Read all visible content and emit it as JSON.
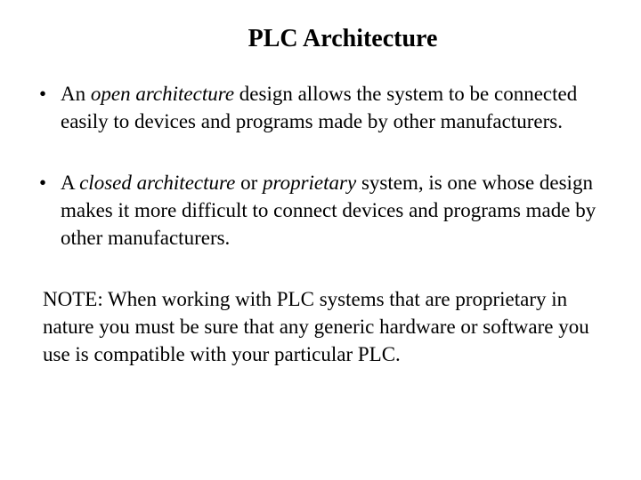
{
  "title": "PLC Architecture",
  "bullets": [
    {
      "pre": "An ",
      "italic": "open architecture",
      "post": " design allows the system to be connected easily to devices and programs made by other manufacturers."
    },
    {
      "pre": "A ",
      "italic": "closed architecture",
      "mid": " or ",
      "italic2": "proprietary",
      "post": " system, is one whose design makes it more difficult to connect devices and programs made by other manufacturers."
    }
  ],
  "note": "NOTE: When working with PLC systems that are proprietary in nature you must be sure that any generic hardware or software you use is compatible with your particular PLC.",
  "style": {
    "background_color": "#ffffff",
    "text_color": "#000000",
    "font_family": "Times New Roman",
    "title_fontsize": 28,
    "body_fontsize": 23,
    "bullet_char": "•"
  }
}
